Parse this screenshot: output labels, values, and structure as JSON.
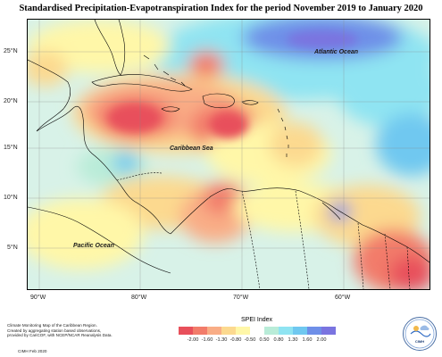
{
  "title": "Standardised Precipitation-Evapotranspiration Index for the period November 2019 to January 2020",
  "map": {
    "lat_labels": [
      "25°N",
      "20°N",
      "15°N",
      "10°N",
      "5°N"
    ],
    "lon_labels": [
      "90°W",
      "80°W",
      "70°W",
      "60°W"
    ],
    "ocean_labels": {
      "atlantic": "Atlantic Ocean",
      "caribbean": "Caribbean Sea",
      "pacific": "Pacific Ocean"
    }
  },
  "legend": {
    "title": "SPEI Index",
    "ticks": [
      "-2.00",
      "-1.60",
      "-1.30",
      "-0.80",
      "-0.50",
      "0.50",
      "0.80",
      "1.30",
      "1.60",
      "2.00"
    ],
    "colors": [
      "#e8505b",
      "#f27c6a",
      "#f9ad86",
      "#fcd98f",
      "#fff7a8",
      "#ffffff",
      "#b9ecd8",
      "#8fe4f2",
      "#6fc8f0",
      "#6e8fe8",
      "#7a74e0"
    ]
  },
  "credit": {
    "lines": [
      "Climate Monitoring Map of the Caribbean Region.",
      "Created by aggregating station based observations,",
      "provided by CariCOF, with NCEP/NCAR Reanalysis Data."
    ],
    "date": "CIMH Feb 2020"
  },
  "logo": {
    "text": "CIMH",
    "icon": "cimh-logo-icon"
  }
}
